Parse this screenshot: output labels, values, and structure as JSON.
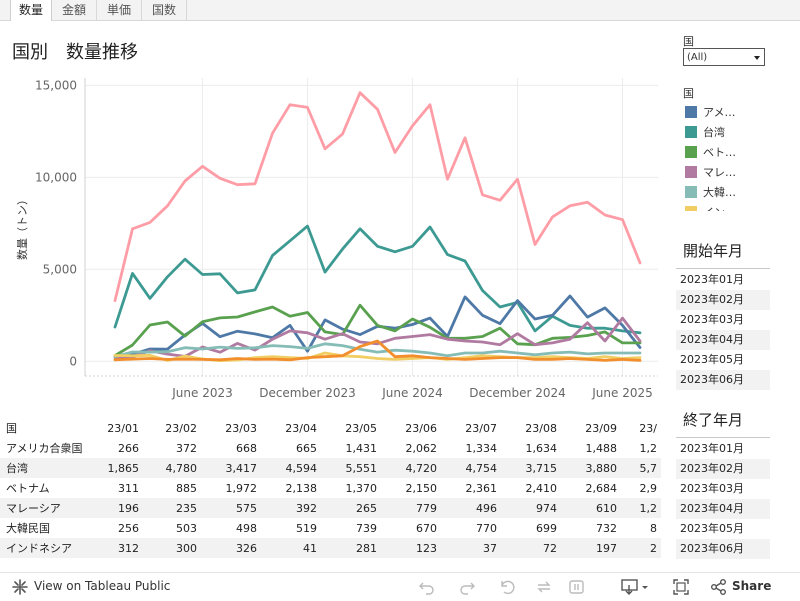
{
  "tabs": [
    {
      "label": "数量",
      "active": true
    },
    {
      "label": "金額",
      "active": false
    },
    {
      "label": "単価",
      "active": false
    },
    {
      "label": "国数",
      "active": false
    }
  ],
  "title": "国別　数量推移",
  "filter": {
    "label": "国",
    "value": "(All)"
  },
  "legend": {
    "label": "国",
    "items": [
      {
        "label": "アメ…",
        "color": "#4e79a7"
      },
      {
        "label": "台湾",
        "color": "#3d9a92"
      },
      {
        "label": "ベト…",
        "color": "#59a14f"
      },
      {
        "label": "マレ…",
        "color": "#b07aa1"
      },
      {
        "label": "大韓…",
        "color": "#86bcb6"
      },
      {
        "label": "イン…",
        "color": "#f1ce63"
      }
    ]
  },
  "start_month": {
    "title": "開始年月",
    "items": [
      "2023年01月",
      "2023年02月",
      "2023年03月",
      "2023年04月",
      "2023年05月",
      "2023年06月"
    ]
  },
  "end_month": {
    "title": "終了年月",
    "items": [
      "2023年01月",
      "2023年02月",
      "2023年03月",
      "2023年04月",
      "2023年05月",
      "2023年06月"
    ]
  },
  "chart_data": {
    "type": "line",
    "title": "国別　数量推移",
    "ylabel": "数量（トン）",
    "ylim": [
      -800,
      15400
    ],
    "yticks": [
      0,
      5000,
      10000,
      15000
    ],
    "ytick_labels": [
      "0",
      "5,000",
      "10,000",
      "15,000"
    ],
    "x_tick_labels": [
      {
        "label": "June 2023",
        "index": 5
      },
      {
        "label": "December 2023",
        "index": 11
      },
      {
        "label": "June 2024",
        "index": 17
      },
      {
        "label": "December 2024",
        "index": 23
      },
      {
        "label": "June 2025",
        "index": 29
      }
    ],
    "x_count": 31,
    "series": [
      {
        "color": "#ff9da7",
        "values": [
          3300,
          7200,
          7550,
          8450,
          9800,
          10600,
          9950,
          9600,
          9650,
          12400,
          13950,
          13800,
          11550,
          12350,
          14600,
          13700,
          11350,
          12800,
          13950,
          9900,
          12150,
          9050,
          8750,
          9900,
          6350,
          7850,
          8450,
          8650,
          7950,
          7700,
          5350
        ]
      },
      {
        "color": "#3d9a92",
        "values": [
          1865,
          4780,
          3417,
          4594,
          5551,
          4720,
          4754,
          3715,
          3880,
          5750,
          6550,
          7350,
          4850,
          6100,
          7200,
          6250,
          5950,
          6250,
          7300,
          5800,
          5450,
          3850,
          2950,
          3200,
          1650,
          2450,
          1950,
          1800,
          1800,
          1650,
          1550
        ]
      },
      {
        "color": "#4e79a7",
        "values": [
          266,
          372,
          668,
          665,
          1431,
          2062,
          1334,
          1634,
          1488,
          1280,
          1950,
          550,
          2250,
          1750,
          1450,
          1900,
          1800,
          2000,
          2350,
          1350,
          3500,
          2500,
          2050,
          3300,
          2300,
          2500,
          3550,
          2400,
          2900,
          1950,
          750
        ]
      },
      {
        "color": "#59a14f",
        "values": [
          311,
          885,
          1972,
          2138,
          1370,
          2150,
          2361,
          2410,
          2684,
          2950,
          2450,
          2650,
          1600,
          1450,
          3050,
          1950,
          1650,
          2300,
          1850,
          1250,
          1250,
          1350,
          1800,
          950,
          900,
          1250,
          1300,
          1400,
          1600,
          1000,
          1000
        ]
      },
      {
        "color": "#b07aa1",
        "values": [
          196,
          235,
          575,
          392,
          265,
          779,
          496,
          974,
          610,
          1200,
          1650,
          1550,
          1200,
          1500,
          1050,
          950,
          1250,
          1350,
          1450,
          1200,
          1100,
          1050,
          900,
          1500,
          900,
          1000,
          1200,
          2100,
          1100,
          2350,
          1100
        ]
      },
      {
        "color": "#86bcb6",
        "values": [
          256,
          503,
          498,
          519,
          739,
          670,
          770,
          699,
          732,
          850,
          800,
          700,
          950,
          850,
          650,
          500,
          600,
          550,
          450,
          300,
          450,
          450,
          550,
          450,
          350,
          450,
          500,
          400,
          450,
          450,
          450
        ]
      },
      {
        "color": "#f1ce63",
        "values": [
          312,
          300,
          326,
          41,
          281,
          123,
          37,
          72,
          197,
          250,
          200,
          150,
          450,
          300,
          250,
          150,
          100,
          150,
          200,
          100,
          200,
          300,
          250,
          200,
          200,
          250,
          200,
          150,
          250,
          150,
          200
        ]
      },
      {
        "color": "#f28e2b",
        "values": [
          80,
          120,
          150,
          100,
          120,
          100,
          80,
          150,
          100,
          120,
          80,
          200,
          250,
          300,
          800,
          1100,
          250,
          300,
          200,
          150,
          100,
          150,
          200,
          200,
          100,
          100,
          150,
          100,
          50,
          100,
          50
        ]
      }
    ]
  },
  "table": {
    "corner": "国",
    "columns": [
      "23/01",
      "23/02",
      "23/03",
      "23/04",
      "23/05",
      "23/06",
      "23/07",
      "23/08",
      "23/09",
      "23/"
    ],
    "rows": [
      {
        "name": "アメリカ合衆国",
        "cells": [
          "266",
          "372",
          "668",
          "665",
          "1,431",
          "2,062",
          "1,334",
          "1,634",
          "1,488",
          "1,2"
        ]
      },
      {
        "name": "台湾",
        "cells": [
          "1,865",
          "4,780",
          "3,417",
          "4,594",
          "5,551",
          "4,720",
          "4,754",
          "3,715",
          "3,880",
          "5,7"
        ]
      },
      {
        "name": "ベトナム",
        "cells": [
          "311",
          "885",
          "1,972",
          "2,138",
          "1,370",
          "2,150",
          "2,361",
          "2,410",
          "2,684",
          "2,9"
        ]
      },
      {
        "name": "マレーシア",
        "cells": [
          "196",
          "235",
          "575",
          "392",
          "265",
          "779",
          "496",
          "974",
          "610",
          "1,2"
        ]
      },
      {
        "name": "大韓民国",
        "cells": [
          "256",
          "503",
          "498",
          "519",
          "739",
          "670",
          "770",
          "699",
          "732",
          "8"
        ]
      },
      {
        "name": "インドネシア",
        "cells": [
          "312",
          "300",
          "326",
          "41",
          "281",
          "123",
          "37",
          "72",
          "197",
          "2"
        ]
      }
    ]
  },
  "footer": {
    "view_label": "View on Tableau Public",
    "share_label": "Share"
  }
}
